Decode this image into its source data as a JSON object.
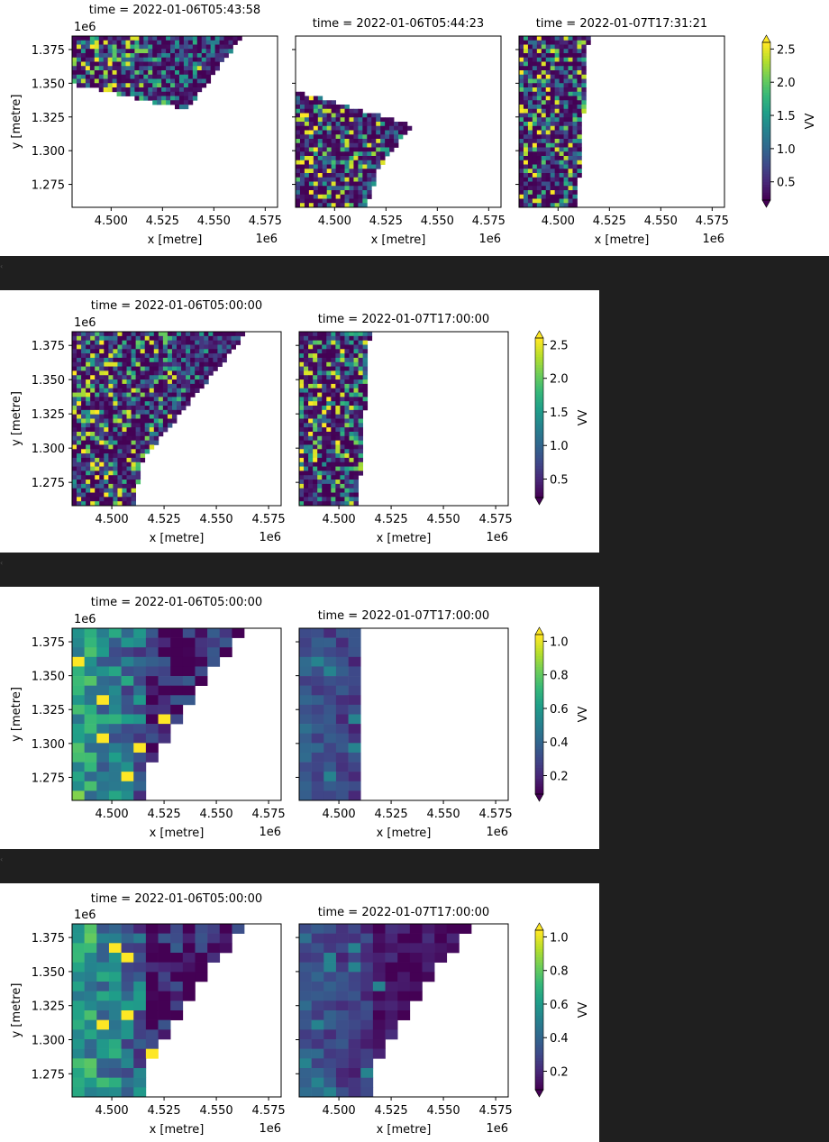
{
  "chart_data": [
    {
      "type": "heatmap",
      "colorbar": {
        "label": "VV",
        "ticks": [
          "0.5",
          "1.0",
          "1.5",
          "2.0",
          "2.5"
        ],
        "extend": "both",
        "colormap": "viridis"
      },
      "panels": [
        {
          "title": "time = 2022-01-06T05:43:58",
          "coverage": "northwest wedge"
        },
        {
          "title": "time = 2022-01-06T05:44:23",
          "coverage": "southwest wedge"
        },
        {
          "title": "time = 2022-01-07T17:31:21",
          "coverage": "west strip"
        }
      ],
      "xlabel": "x [metre]",
      "ylabel": "y [metre]",
      "x_offset_label": "1e6",
      "y_offset_label": "1e6",
      "xticks": [
        "4.500",
        "4.525",
        "4.550",
        "4.575"
      ],
      "yticks": [
        "1.375",
        "1.350",
        "1.325",
        "1.300",
        "1.275"
      ],
      "xlim": [
        4.481,
        4.581
      ],
      "ylim": [
        1.258,
        1.385
      ]
    },
    {
      "type": "heatmap",
      "colorbar": {
        "label": "VV",
        "ticks": [
          "0.5",
          "1.0",
          "1.5",
          "2.0",
          "2.5"
        ],
        "extend": "both",
        "colormap": "viridis"
      },
      "panels": [
        {
          "title": "time = 2022-01-06T05:00:00",
          "coverage": "merged triangle"
        },
        {
          "title": "time = 2022-01-07T17:00:00",
          "coverage": "west strip"
        }
      ],
      "xlabel": "x [metre]",
      "ylabel": "y [metre]",
      "x_offset_label": "1e6",
      "y_offset_label": "1e6",
      "xticks": [
        "4.500",
        "4.525",
        "4.550",
        "4.575"
      ],
      "yticks": [
        "1.375",
        "1.350",
        "1.325",
        "1.300",
        "1.275"
      ],
      "xlim": [
        4.481,
        4.581
      ],
      "ylim": [
        1.258,
        1.385
      ]
    },
    {
      "type": "heatmap",
      "colorbar": {
        "label": "VV",
        "ticks": [
          "0.2",
          "0.4",
          "0.6",
          "0.8",
          "1.0"
        ],
        "extend": "both",
        "colormap": "viridis"
      },
      "panels": [
        {
          "title": "time = 2022-01-06T05:00:00",
          "coverage": "coarse triangle"
        },
        {
          "title": "time = 2022-01-07T17:00:00",
          "coverage": "coarse west strip"
        }
      ],
      "xlabel": "x [metre]",
      "ylabel": "y [metre]",
      "x_offset_label": "1e6",
      "y_offset_label": "1e6",
      "xticks": [
        "4.500",
        "4.525",
        "4.550",
        "4.575"
      ],
      "yticks": [
        "1.375",
        "1.350",
        "1.325",
        "1.300",
        "1.275"
      ],
      "xlim": [
        4.481,
        4.581
      ],
      "ylim": [
        1.258,
        1.385
      ]
    },
    {
      "type": "heatmap",
      "colorbar": {
        "label": "VV",
        "ticks": [
          "0.2",
          "0.4",
          "0.6",
          "0.8",
          "1.0"
        ],
        "extend": "both",
        "colormap": "viridis"
      },
      "panels": [
        {
          "title": "time = 2022-01-06T05:00:00",
          "coverage": "coarse triangle"
        },
        {
          "title": "time = 2022-01-07T17:00:00",
          "coverage": "coarse triangle filled"
        }
      ],
      "xlabel": "x [metre]",
      "ylabel": "y [metre]",
      "x_offset_label": "1e6",
      "y_offset_label": "1e6",
      "xticks": [
        "4.500",
        "4.525",
        "4.550",
        "4.575"
      ],
      "yticks": [
        "1.375",
        "1.350",
        "1.325",
        "1.300",
        "1.275"
      ],
      "xlim": [
        4.481,
        4.581
      ],
      "ylim": [
        1.258,
        1.385
      ]
    }
  ]
}
